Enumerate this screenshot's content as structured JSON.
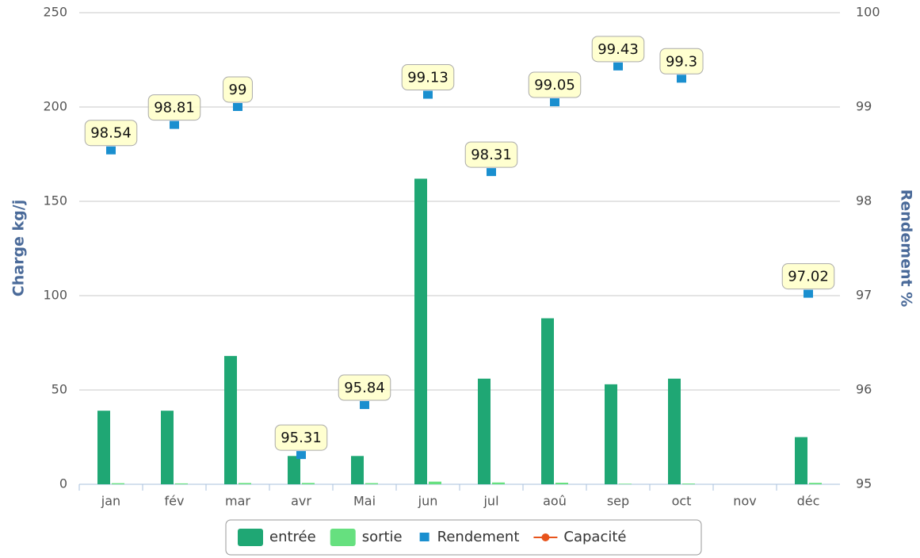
{
  "chart_data": {
    "type": "bar",
    "categories": [
      "jan",
      "fév",
      "mar",
      "avr",
      "Mai",
      "jun",
      "jul",
      "aoû",
      "sep",
      "oct",
      "nov",
      "déc"
    ],
    "ylabel": "Charge kg/j",
    "y2label": "Rendement %",
    "ylim": [
      0,
      250
    ],
    "yticks": [
      0,
      50,
      100,
      150,
      200,
      250
    ],
    "y2lim": [
      95,
      100
    ],
    "y2ticks": [
      95,
      96,
      97,
      98,
      99,
      100
    ],
    "grid": true,
    "legend": "bottom",
    "series": [
      {
        "name": "entrée",
        "type": "bar",
        "color": "#1fa774",
        "values": [
          39,
          39,
          68,
          15,
          15,
          162,
          56,
          88,
          53,
          56,
          null,
          25
        ]
      },
      {
        "name": "sortie",
        "type": "bar",
        "color": "#66e07f",
        "values": [
          0.57,
          0.46,
          0.68,
          0.7,
          0.62,
          1.41,
          0.95,
          0.84,
          0.3,
          0.39,
          null,
          0.75
        ]
      },
      {
        "name": "Rendement",
        "type": "marker",
        "axis": "y2",
        "color": "#1a8fcf",
        "values": [
          98.54,
          98.81,
          99,
          95.31,
          95.84,
          99.13,
          98.31,
          99.05,
          99.43,
          99.3,
          null,
          97.02
        ]
      },
      {
        "name": "Capacité",
        "type": "line",
        "color": "#e8541c",
        "values": [
          null,
          null,
          null,
          null,
          null,
          null,
          null,
          null,
          null,
          null,
          null,
          null
        ]
      }
    ]
  }
}
